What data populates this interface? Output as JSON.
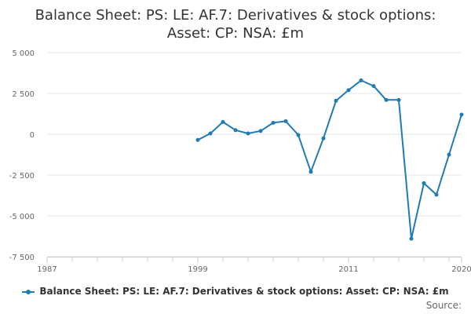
{
  "chart_data": {
    "type": "line",
    "title_lines": [
      "Balance Sheet: PS: LE: AF.7: Derivatives & stock options:",
      "Asset: CP: NSA: £m"
    ],
    "xlabel": "",
    "ylabel": "",
    "xlim": [
      1987,
      2020
    ],
    "ylim": [
      -7500,
      5000
    ],
    "x_ticks": [
      1987,
      1999,
      2011,
      2020
    ],
    "x_tick_labels": [
      "1987",
      "1999",
      "2011",
      "2020"
    ],
    "y_ticks": [
      5000,
      2500,
      0,
      -2500,
      -5000,
      -7500
    ],
    "y_tick_labels": [
      "5 000",
      "2 500",
      "0",
      "-2 500",
      "-5 000",
      "-7 500"
    ],
    "grid": true,
    "legend_position": "bottom",
    "series": [
      {
        "name": "Balance Sheet: PS: LE: AF.7: Derivatives & stock options: Asset: CP: NSA: £m",
        "color": "#1f7bb6",
        "x": [
          1999,
          2000,
          2001,
          2002,
          2003,
          2004,
          2005,
          2006,
          2007,
          2008,
          2009,
          2010,
          2011,
          2012,
          2013,
          2014,
          2015,
          2016,
          2017,
          2018,
          2019,
          2020
        ],
        "y": [
          -350,
          50,
          750,
          250,
          50,
          200,
          700,
          800,
          -50,
          -2300,
          -250,
          2050,
          2700,
          3300,
          2950,
          2100,
          2100,
          -6400,
          -3000,
          -3700,
          -1250,
          1200
        ]
      }
    ]
  },
  "source_label": "Source:"
}
